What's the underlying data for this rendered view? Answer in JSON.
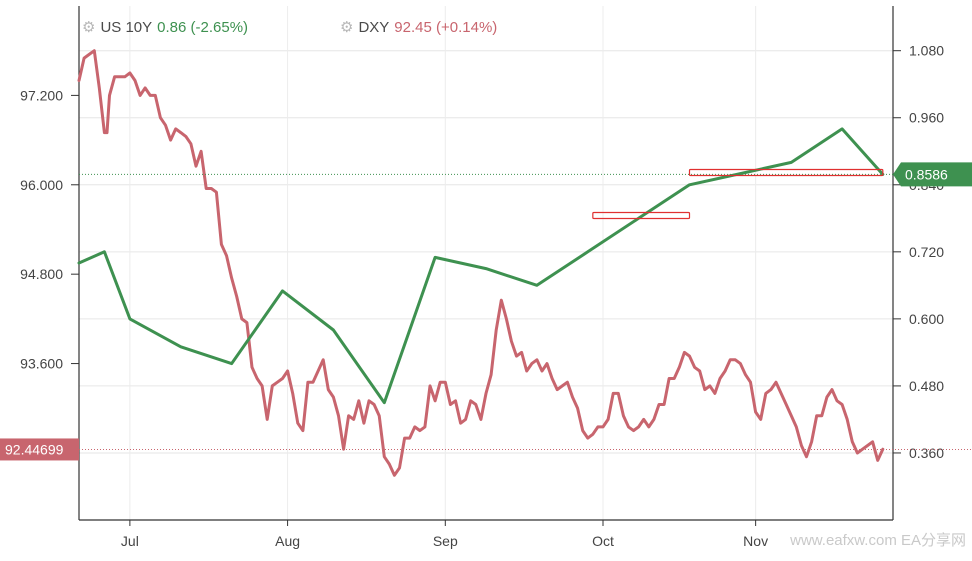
{
  "legend": {
    "us10y": {
      "name": "US 10Y",
      "value": "0.86",
      "change": "(-2.65%)"
    },
    "dxy": {
      "name": "DXY",
      "value": "92.45",
      "change": "(+0.14%)"
    }
  },
  "watermark": "www.eafxw.com  EA分享网",
  "colors": {
    "us10y": "#3e9150",
    "dxy": "#c8656e",
    "highlight_box": "#e03030"
  },
  "chart_data": {
    "type": "line",
    "x_axis": {
      "ticks": [
        "Jul",
        "Aug",
        "Sep",
        "Oct",
        "Nov"
      ],
      "tick_positions": [
        10,
        41,
        72,
        103,
        133
      ]
    },
    "left_axis": {
      "range": [
        91.5,
        98.4
      ],
      "ticks": [
        "97.200",
        "96.000",
        "94.800",
        "93.600"
      ]
    },
    "right_axis": {
      "range": [
        0.24,
        1.16
      ],
      "ticks": [
        "1.080",
        "0.960",
        "0.840",
        "0.720",
        "0.600",
        "0.480",
        "0.360"
      ]
    },
    "grid": true,
    "current_labels": {
      "dxy": "92.44699",
      "us10y": "0.8586"
    },
    "series": [
      {
        "key": "dxy",
        "axis": "left",
        "x": [
          0,
          1,
          2,
          3,
          4,
          5,
          5.5,
          6,
          7,
          8,
          9,
          10,
          11,
          12,
          13,
          14,
          15,
          16,
          17,
          18,
          19,
          20,
          21,
          22,
          23,
          24,
          25,
          26,
          27,
          28,
          29,
          30,
          31,
          32,
          33,
          34,
          35,
          36,
          37,
          38,
          39,
          40,
          41,
          42,
          43,
          44,
          45,
          46,
          47,
          48,
          49,
          50,
          51,
          52,
          53,
          54,
          55,
          56,
          57,
          58,
          59,
          60,
          61,
          62,
          63,
          64,
          65,
          66,
          67,
          68,
          69,
          70,
          71,
          72,
          73,
          74,
          75,
          76,
          77,
          78,
          79,
          80,
          81,
          82,
          83,
          84,
          85,
          86,
          87,
          88,
          89,
          90,
          91,
          92,
          93,
          94,
          95,
          96,
          97,
          98,
          99,
          100,
          101,
          102,
          103,
          104,
          105,
          106,
          107,
          108,
          109,
          110,
          111,
          112,
          113,
          114,
          115,
          116,
          117,
          118,
          119,
          120,
          121,
          122,
          123,
          124,
          125,
          126,
          127,
          128,
          129,
          130,
          131,
          132,
          133,
          134,
          135,
          136,
          137,
          138,
          139,
          140,
          141,
          142,
          143,
          144,
          145,
          146,
          147,
          148,
          149,
          150,
          151,
          152,
          153,
          154,
          155,
          156,
          157,
          158
        ],
        "values": [
          97.4,
          97.7,
          97.75,
          97.8,
          97.3,
          96.7,
          96.7,
          97.2,
          97.45,
          97.45,
          97.45,
          97.5,
          97.4,
          97.2,
          97.3,
          97.2,
          97.2,
          96.9,
          96.8,
          96.6,
          96.75,
          96.7,
          96.65,
          96.55,
          96.25,
          96.45,
          95.95,
          95.95,
          95.9,
          95.2,
          95.05,
          94.75,
          94.5,
          94.2,
          94.15,
          93.55,
          93.4,
          93.3,
          92.85,
          93.3,
          93.35,
          93.4,
          93.5,
          93.2,
          92.8,
          92.7,
          93.35,
          93.35,
          93.5,
          93.65,
          93.25,
          93.15,
          92.9,
          92.45,
          92.9,
          92.85,
          93.1,
          92.8,
          93.1,
          93.05,
          92.9,
          92.35,
          92.25,
          92.1,
          92.2,
          92.6,
          92.6,
          92.75,
          92.7,
          92.75,
          93.3,
          93.1,
          93.35,
          93.35,
          93.05,
          93.1,
          92.8,
          92.85,
          93.1,
          93.05,
          92.85,
          93.2,
          93.45,
          94.05,
          94.45,
          94.2,
          93.9,
          93.7,
          93.75,
          93.5,
          93.6,
          93.65,
          93.5,
          93.6,
          93.4,
          93.25,
          93.3,
          93.35,
          93.15,
          93.0,
          92.7,
          92.6,
          92.65,
          92.75,
          92.75,
          92.85,
          93.2,
          93.2,
          92.9,
          92.75,
          92.7,
          92.75,
          92.85,
          92.75,
          92.85,
          93.05,
          93.05,
          93.4,
          93.4,
          93.55,
          93.75,
          93.7,
          93.55,
          93.5,
          93.25,
          93.3,
          93.2,
          93.4,
          93.5,
          93.65,
          93.65,
          93.6,
          93.45,
          93.35,
          92.95,
          92.85,
          93.2,
          93.25,
          93.35,
          93.2,
          93.05,
          92.9,
          92.75,
          92.5,
          92.35,
          92.55,
          92.9,
          92.9,
          93.15,
          93.25,
          93.1,
          93.05,
          92.85,
          92.55,
          92.4,
          92.45,
          92.5,
          92.55,
          92.3,
          92.45
        ]
      },
      {
        "key": "us10y",
        "axis": "right",
        "x": [
          0,
          5,
          10,
          20,
          30,
          40,
          50,
          60,
          70,
          80,
          90,
          100,
          110,
          120,
          130,
          140,
          150,
          158
        ],
        "values": [
          0.7,
          0.72,
          0.6,
          0.55,
          0.52,
          0.65,
          0.58,
          0.45,
          0.71,
          0.69,
          0.66,
          0.72,
          0.78,
          0.84,
          0.86,
          0.88,
          0.94,
          0.8586
        ]
      }
    ],
    "highlight_boxes": [
      {
        "x_start": 101,
        "x_end": 120,
        "level": 0.785
      },
      {
        "x_start": 120,
        "x_end": 158,
        "level": 0.862
      }
    ]
  }
}
